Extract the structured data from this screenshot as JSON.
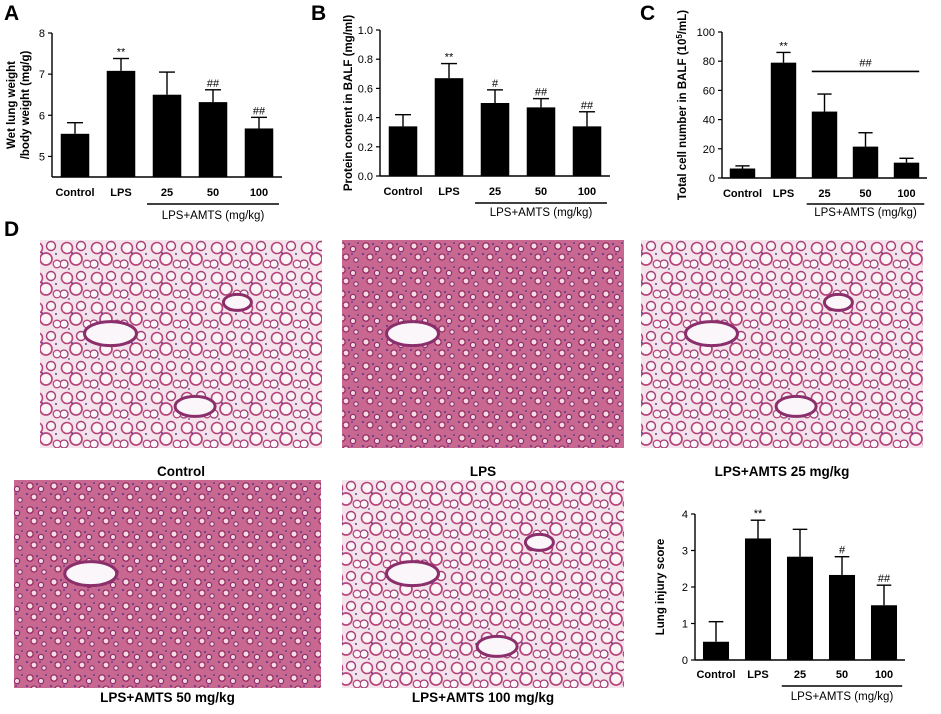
{
  "panels": {
    "A": "A",
    "B": "B",
    "C": "C",
    "D": "D"
  },
  "chart_data": [
    {
      "id": "A",
      "type": "bar",
      "ylabel": "Wet lung weight\n/body weight (mg/g)",
      "categories": [
        "Control",
        "LPS",
        "25",
        "50",
        "100"
      ],
      "values": [
        5.55,
        7.08,
        6.5,
        6.32,
        5.68
      ],
      "errors": [
        0.27,
        0.3,
        0.55,
        0.3,
        0.27
      ],
      "significance": [
        "",
        "**",
        "",
        "##",
        "##"
      ],
      "group_label": "LPS+AMTS (mg/kg)",
      "ylim": [
        4.5,
        8
      ],
      "yticks": [
        5,
        6,
        7,
        8
      ]
    },
    {
      "id": "B",
      "type": "bar",
      "ylabel": "Protein content in BALF (mg/ml)",
      "categories": [
        "Control",
        "LPS",
        "25",
        "50",
        "100"
      ],
      "values": [
        0.34,
        0.67,
        0.5,
        0.47,
        0.34
      ],
      "errors": [
        0.08,
        0.1,
        0.09,
        0.06,
        0.1
      ],
      "significance": [
        "",
        "**",
        "#",
        "##",
        "##"
      ],
      "group_label": "LPS+AMTS (mg/kg)",
      "ylim": [
        0,
        1.0
      ],
      "yticks": [
        0.0,
        0.2,
        0.4,
        0.6,
        0.8,
        1.0
      ]
    },
    {
      "id": "C",
      "type": "bar",
      "ylabel": "Total cell number in BALF (10",
      "ylabel_sup": "5",
      "ylabel_tail": "/mL)",
      "categories": [
        "Control",
        "LPS",
        "25",
        "50",
        "100"
      ],
      "values": [
        6.5,
        79,
        45.5,
        21.5,
        10.5
      ],
      "errors": [
        1.8,
        7,
        12,
        9.5,
        3
      ],
      "significance": [
        "",
        "**",
        "",
        "",
        ""
      ],
      "bracket_label": "##",
      "group_label": "LPS+AMTS (mg/kg)",
      "ylim": [
        0,
        100
      ],
      "yticks": [
        0,
        20,
        40,
        60,
        80,
        100
      ]
    },
    {
      "id": "D",
      "type": "bar",
      "ylabel": "Lung injury score",
      "categories": [
        "Control",
        "LPS",
        "25",
        "50",
        "100"
      ],
      "values": [
        0.5,
        3.33,
        2.83,
        2.33,
        1.5
      ],
      "errors": [
        0.55,
        0.5,
        0.75,
        0.5,
        0.55
      ],
      "significance": [
        "",
        "**",
        "",
        "#",
        "##"
      ],
      "group_label": "LPS+AMTS (mg/kg)",
      "ylim": [
        0,
        4
      ],
      "yticks": [
        0,
        1,
        2,
        3,
        4
      ]
    }
  ],
  "micrographs": [
    {
      "caption": "Control",
      "palette": "normal"
    },
    {
      "caption": "LPS",
      "palette": "dense"
    },
    {
      "caption": "LPS+AMTS 25 mg/kg",
      "palette": "normal"
    },
    {
      "caption": "LPS+AMTS 50 mg/kg",
      "palette": "dense"
    },
    {
      "caption": "LPS+AMTS 100 mg/kg",
      "palette": "normal"
    }
  ],
  "colors": {
    "bar": "#000000",
    "tissue": "#b8457a",
    "tissue_dark": "#8a2f6b",
    "nuclei": "#5b3f96",
    "background": "#f7eef4"
  }
}
